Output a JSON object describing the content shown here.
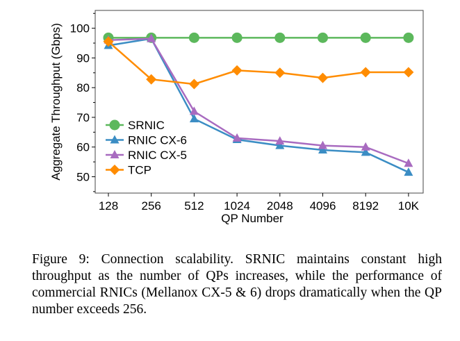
{
  "chart_data": {
    "type": "line",
    "xlabel": "QP Number",
    "ylabel": "Aggregate Throughput (Gbps)",
    "categories": [
      "128",
      "256",
      "512",
      "1024",
      "2048",
      "4096",
      "8192",
      "10K"
    ],
    "ylim": [
      44.5,
      106
    ],
    "yticks": [
      50,
      60,
      70,
      80,
      90,
      100
    ],
    "grid": false,
    "legend_placement": "lower-left",
    "series": [
      {
        "name": "SRNIC",
        "color": "#5cb85c",
        "marker": "circle",
        "values": [
          96.8,
          96.8,
          96.8,
          96.8,
          96.8,
          96.8,
          96.8,
          96.8
        ]
      },
      {
        "name": "RNIC CX-6",
        "color": "#3b8dc4",
        "marker": "triangle",
        "values": [
          94.2,
          96.5,
          69.5,
          62.5,
          60.5,
          59.0,
          58.2,
          51.5
        ]
      },
      {
        "name": "RNIC CX-5",
        "color": "#a86bc0",
        "marker": "triangle",
        "values": [
          96.0,
          96.5,
          72.0,
          63.0,
          62.0,
          60.5,
          60.0,
          54.5
        ]
      },
      {
        "name": "TCP",
        "color": "#ff8c00",
        "marker": "diamond",
        "values": [
          95.5,
          82.8,
          81.2,
          85.8,
          85.0,
          83.3,
          85.2,
          85.2
        ]
      }
    ]
  },
  "caption": "Figure 9: Connection scalability. SRNIC maintains constant high throughput as the number of QPs increases, while the performance of commercial RNICs (Mellanox CX-5 & 6) drops dramatically when the QP number exceeds 256."
}
